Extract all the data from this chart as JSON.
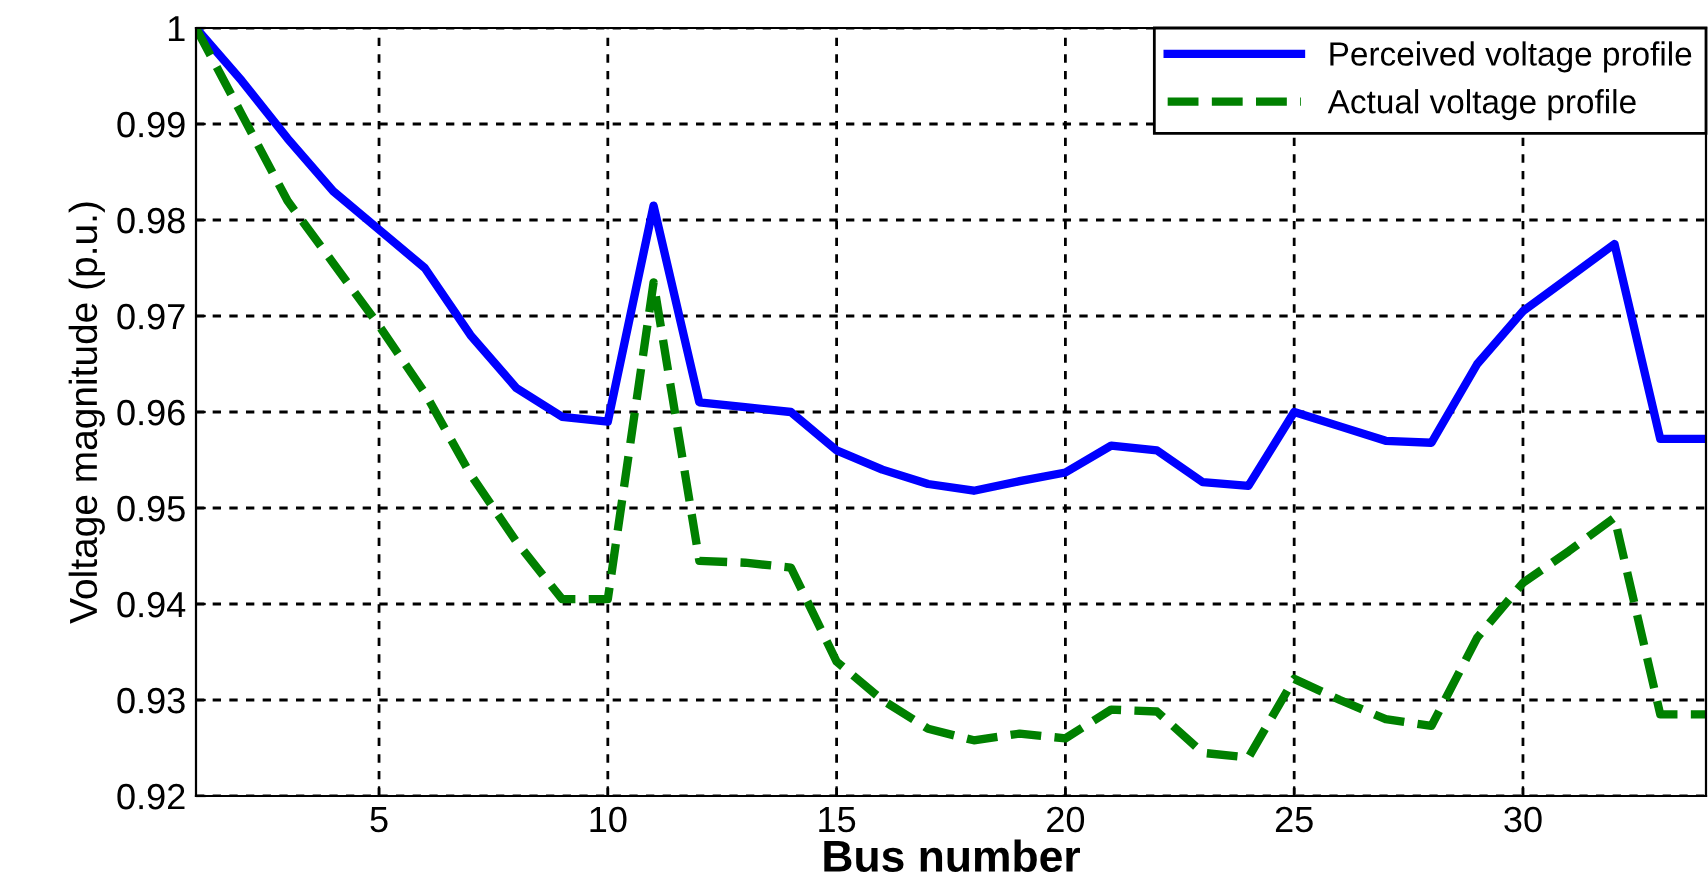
{
  "chart_data": {
    "type": "line",
    "xlabel": "Bus number",
    "ylabel": "Voltage magnitude (p.u.)",
    "x": [
      1,
      2,
      3,
      4,
      5,
      6,
      7,
      8,
      9,
      10,
      11,
      12,
      13,
      14,
      15,
      16,
      17,
      18,
      19,
      20,
      21,
      22,
      23,
      24,
      25,
      26,
      27,
      28,
      29,
      30,
      31,
      32,
      33,
      34
    ],
    "series": [
      {
        "name": "Perceived voltage profile",
        "color": "#0000ff",
        "line_style": "solid",
        "values": [
          1.0,
          0.9945,
          0.9885,
          0.983,
          0.979,
          0.975,
          0.968,
          0.9625,
          0.9595,
          0.959,
          0.9815,
          0.961,
          0.9605,
          0.96,
          0.956,
          0.954,
          0.9525,
          0.9518,
          0.9528,
          0.9537,
          0.9565,
          0.956,
          0.9527,
          0.9523,
          0.96,
          0.9585,
          0.957,
          0.9568,
          0.965,
          0.9705,
          0.974,
          0.9775,
          0.9572,
          0.9572
        ]
      },
      {
        "name": "Actual voltage profile",
        "color": "#008000",
        "line_style": "dashed",
        "values": [
          1.0,
          0.991,
          0.982,
          0.9755,
          0.969,
          0.962,
          0.9535,
          0.9465,
          0.9405,
          0.9405,
          0.9735,
          0.9445,
          0.9443,
          0.9438,
          0.934,
          0.93,
          0.927,
          0.9258,
          0.9265,
          0.926,
          0.929,
          0.9288,
          0.9245,
          0.924,
          0.9322,
          0.93,
          0.928,
          0.9273,
          0.9365,
          0.9422,
          0.9455,
          0.949,
          0.9285,
          0.9285
        ]
      }
    ],
    "xlim": [
      1,
      34
    ],
    "xticks": [
      5,
      10,
      15,
      20,
      25,
      30
    ],
    "ylim": [
      0.92,
      1
    ],
    "yticks": [
      0.92,
      0.93,
      0.94,
      0.95,
      0.96,
      0.97,
      0.98,
      0.99,
      1
    ],
    "grid": true,
    "legend": "top right",
    "marker": "none"
  }
}
